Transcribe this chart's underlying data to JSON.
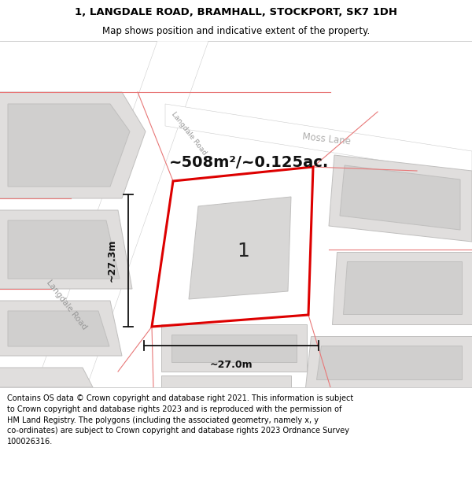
{
  "title_line1": "1, LANGDALE ROAD, BRAMHALL, STOCKPORT, SK7 1DH",
  "title_line2": "Map shows position and indicative extent of the property.",
  "area_label": "~508m²/~0.125ac.",
  "property_number": "1",
  "dim_width": "~27.0m",
  "dim_height": "~27.3m",
  "road_label1": "Langdale Road",
  "road_label2": "Langdale Road",
  "road_label3": "Moss Lane",
  "footer_text_line1": "Contains OS data © Crown copyright and database right 2021. This information is subject",
  "footer_text_line2": "to Crown copyright and database rights 2023 and is reproduced with the permission of",
  "footer_text_line3": "HM Land Registry. The polygons (including the associated geometry, namely x, y",
  "footer_text_line4": "co-ordinates) are subject to Crown copyright and database rights 2023 Ordnance Survey",
  "footer_text_line5": "100026316.",
  "map_bg": "#f2f1f0",
  "road_color": "#ffffff",
  "building_fill": "#e0dedd",
  "building_inner_fill": "#d0cfce",
  "red_poly_color": "#dd0000",
  "red_line_color": "#e87878",
  "dim_color": "#111111",
  "label_color": "#111111",
  "road_label_color": "#999999",
  "area_label_fontsize": 14,
  "prop_num_fontsize": 18,
  "footer_fontsize": 7.0,
  "title_fontsize": 9.5,
  "subtitle_fontsize": 8.5
}
